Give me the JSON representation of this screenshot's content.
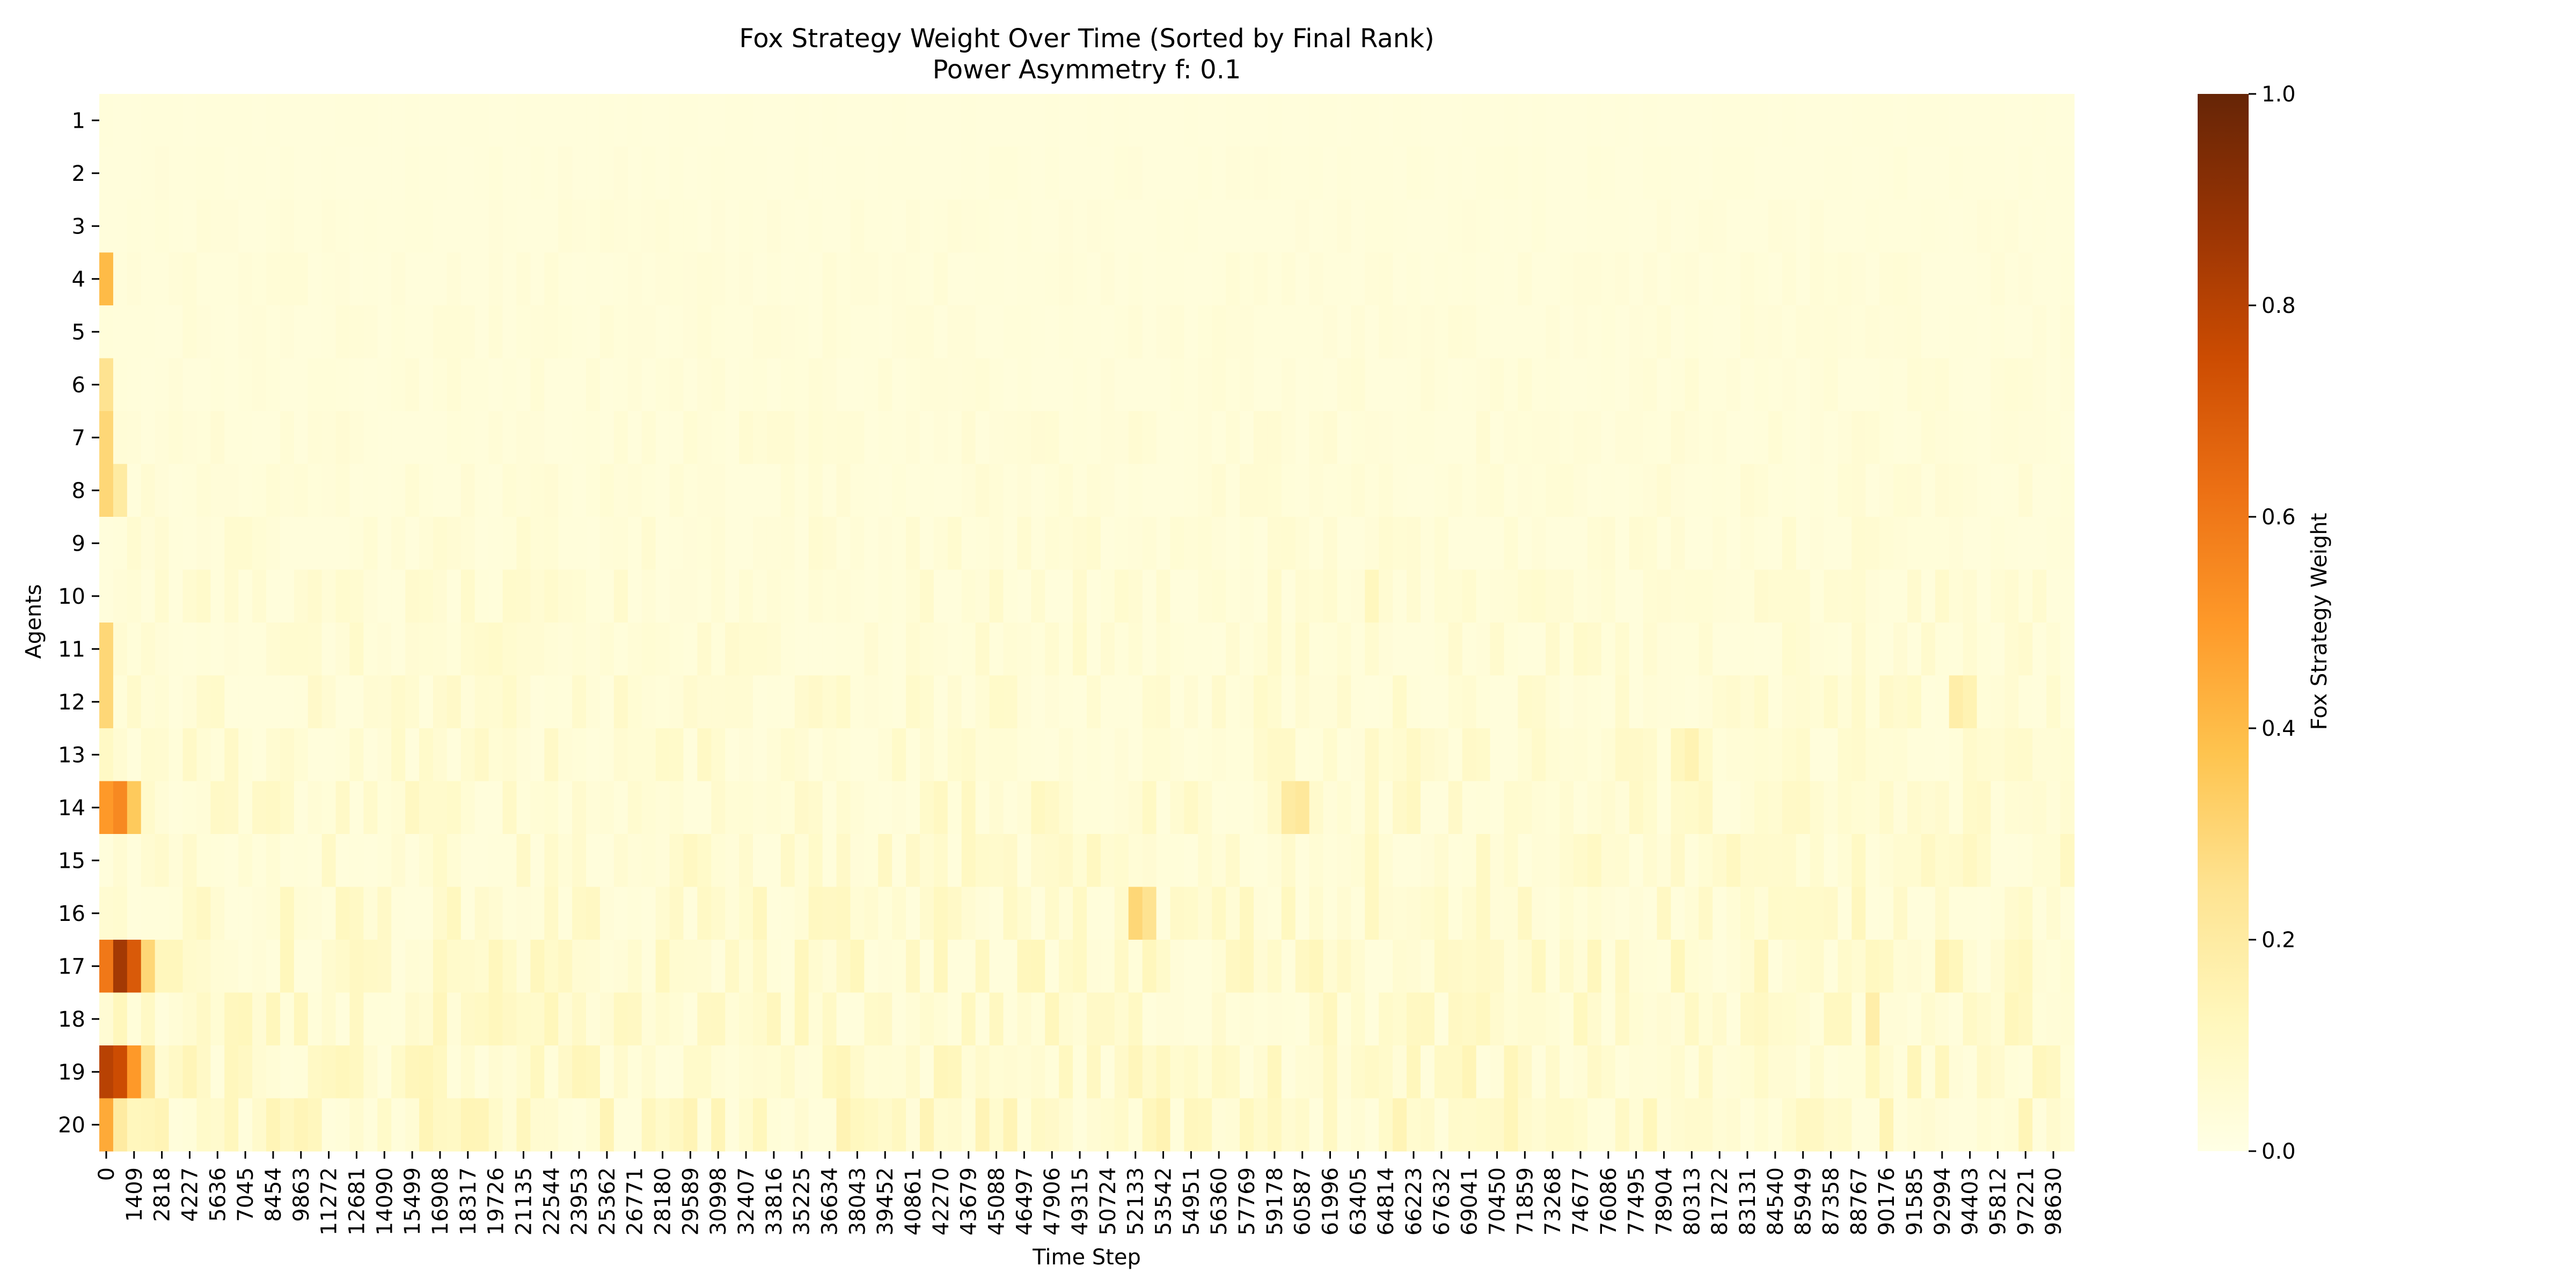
{
  "chart_data": {
    "type": "heatmap",
    "title": "Fox Strategy Weight Over Time (Sorted by Final Rank)",
    "subtitle": "Power Asymmetry f: 0.1",
    "xlabel": "Time Step",
    "ylabel": "Agents",
    "rows": [
      "1",
      "2",
      "3",
      "4",
      "5",
      "6",
      "7",
      "8",
      "9",
      "10",
      "11",
      "12",
      "13",
      "14",
      "15",
      "16",
      "17",
      "18",
      "19",
      "20"
    ],
    "x_tick_labels": [
      "0",
      "1409",
      "2818",
      "4227",
      "5636",
      "7045",
      "8454",
      "9863",
      "11272",
      "12681",
      "14090",
      "15499",
      "16908",
      "18317",
      "19726",
      "21135",
      "22544",
      "23953",
      "25362",
      "26771",
      "28180",
      "29589",
      "30998",
      "32407",
      "33816",
      "35225",
      "36634",
      "38043",
      "39452",
      "40861",
      "42270",
      "43679",
      "45088",
      "46497",
      "47906",
      "49315",
      "50724",
      "52133",
      "53542",
      "54951",
      "56360",
      "57769",
      "59178",
      "60587",
      "61996",
      "63405",
      "64814",
      "66223",
      "67632",
      "69041",
      "70450",
      "71859",
      "73268",
      "74677",
      "76086",
      "77495",
      "78904",
      "80313",
      "81722",
      "83131",
      "84540",
      "85949",
      "87358",
      "88767",
      "90176",
      "91585",
      "92994",
      "94403",
      "95812",
      "97221",
      "98630"
    ],
    "x_range": [
      0,
      99999
    ],
    "n_columns": 142,
    "colorbar": {
      "label": "Fox Strategy Weight",
      "range": [
        0.0,
        1.0
      ],
      "ticks": [
        "0.0",
        "0.2",
        "0.4",
        "0.6",
        "0.8",
        "1.0"
      ],
      "colormap": "YlOrBr"
    },
    "baseline_value": 0.03,
    "noise_amplitude_by_row": [
      0.005,
      0.01,
      0.015,
      0.02,
      0.02,
      0.025,
      0.03,
      0.03,
      0.04,
      0.05,
      0.055,
      0.06,
      0.07,
      0.08,
      0.08,
      0.09,
      0.1,
      0.1,
      0.11,
      0.12
    ],
    "hotspots": [
      {
        "row": 4,
        "col": 0,
        "value": 0.4
      },
      {
        "row": 6,
        "col": 0,
        "value": 0.25
      },
      {
        "row": 7,
        "col": 0,
        "value": 0.3
      },
      {
        "row": 8,
        "col": 0,
        "value": 0.3
      },
      {
        "row": 8,
        "col": 1,
        "value": 0.2
      },
      {
        "row": 11,
        "col": 0,
        "value": 0.3
      },
      {
        "row": 12,
        "col": 0,
        "value": 0.3
      },
      {
        "row": 14,
        "col": 0,
        "value": 0.5
      },
      {
        "row": 14,
        "col": 1,
        "value": 0.55
      },
      {
        "row": 14,
        "col": 2,
        "value": 0.35
      },
      {
        "row": 17,
        "col": 0,
        "value": 0.6
      },
      {
        "row": 17,
        "col": 1,
        "value": 0.85
      },
      {
        "row": 17,
        "col": 2,
        "value": 0.7
      },
      {
        "row": 17,
        "col": 3,
        "value": 0.3
      },
      {
        "row": 19,
        "col": 0,
        "value": 0.8
      },
      {
        "row": 19,
        "col": 1,
        "value": 0.75
      },
      {
        "row": 19,
        "col": 2,
        "value": 0.5
      },
      {
        "row": 19,
        "col": 3,
        "value": 0.25
      },
      {
        "row": 20,
        "col": 0,
        "value": 0.45
      },
      {
        "row": 20,
        "col": 1,
        "value": 0.2
      },
      {
        "row": 16,
        "col": 74,
        "value": 0.3
      },
      {
        "row": 16,
        "col": 75,
        "value": 0.25
      },
      {
        "row": 14,
        "col": 85,
        "value": 0.2
      },
      {
        "row": 14,
        "col": 86,
        "value": 0.22
      },
      {
        "row": 12,
        "col": 133,
        "value": 0.18
      },
      {
        "row": 12,
        "col": 134,
        "value": 0.15
      },
      {
        "row": 17,
        "col": 132,
        "value": 0.15
      },
      {
        "row": 18,
        "col": 127,
        "value": 0.18
      },
      {
        "row": 10,
        "col": 91,
        "value": 0.12
      },
      {
        "row": 13,
        "col": 114,
        "value": 0.15
      },
      {
        "row": 13,
        "col": 113,
        "value": 0.12
      }
    ]
  }
}
